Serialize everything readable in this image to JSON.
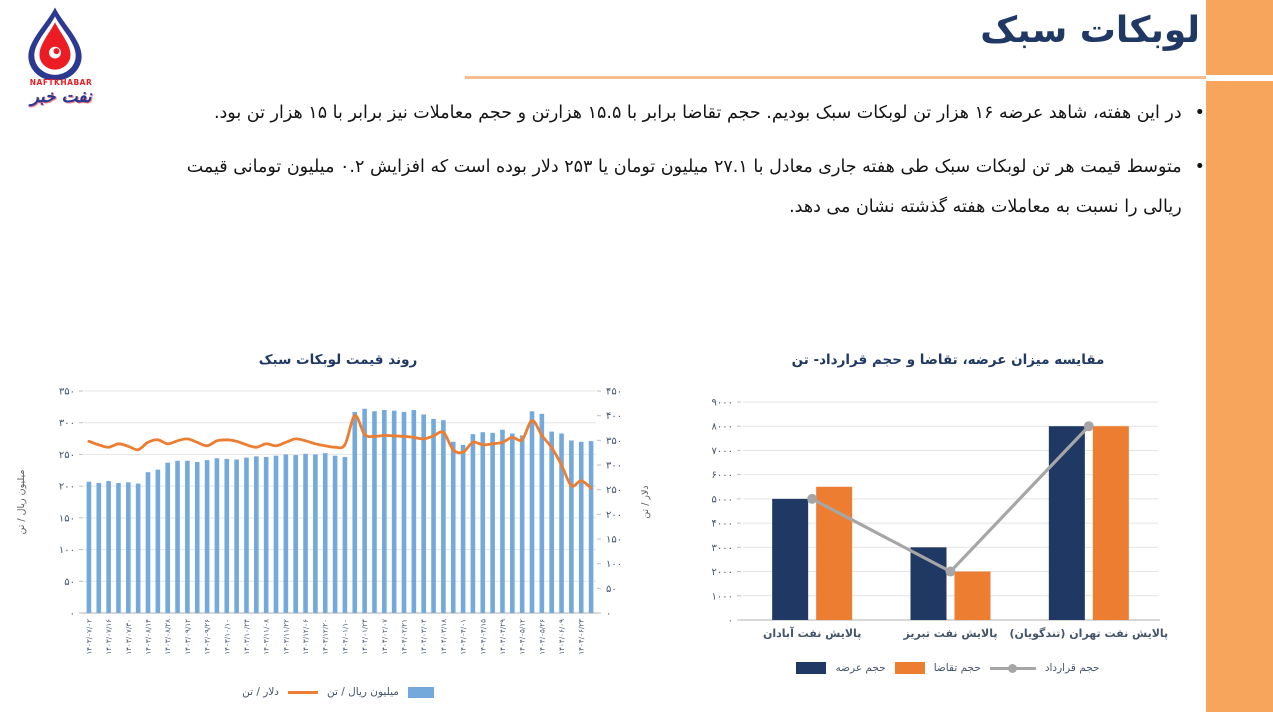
{
  "page": {
    "title": "لوبکات سبک"
  },
  "logo": {
    "name_en": "NAFTKHABAR",
    "name_fa": "نفت خبر"
  },
  "bullets": [
    "در این هفته، شاهد عرضه ۱۶ هزار تن لوبکات سبک بودیم. حجم تقاضا برابر با ۱۵.۵ هزارتن و حجم معاملات نیز برابر با ۱۵ هزار تن بود.",
    "متوسط قیمت هر تن لوبکات سبک طی هفته جاری معادل با ۲۷.۱ میلیون تومان یا ۲۵۳ دلار بوده است که افزایش ۰.۲ میلیون تومانی قیمت ریالی را نسبت به معاملات هفته گذشته نشان می دهد."
  ],
  "colors": {
    "navy": "#1F3864",
    "orange": "#ED7D31",
    "bar_blue": "#74A9DB",
    "line_gray": "#A6A6A6",
    "accent_strip": "#F7A45C",
    "underline": "#F7BD8F",
    "axis_text": "#44546A",
    "title_text": "#1F3864",
    "grid": "#E4E4E4",
    "axis_line": "#BFBFBF"
  },
  "chart_data": [
    {
      "type": "bar",
      "subtype": "bar+line-dual-axis",
      "title": "روند قیمت لوبکات سبک",
      "x_tick_labels": [
        "۱۴۰۳/۰۷/۰۲",
        "۱۴۰۳/۰۷/۱۶",
        "۱۴۰۳/۰۷/۳۰",
        "۱۴۰۳/۰۸/۱۴",
        "۱۴۰۳/۰۸/۲۸",
        "۱۴۰۳/۰۹/۱۲",
        "۱۴۰۳/۰۹/۲۶",
        "۱۴۰۳/۱۰/۱۰",
        "۱۴۰۳/۱۰/۲۴",
        "۱۴۰۳/۱۱/۰۸",
        "۱۴۰۳/۱۱/۲۲",
        "۱۴۰۳/۱۲/۰۶",
        "۱۴۰۳/۱۲/۲۰",
        "۱۴۰۴/۰۱/۱۰",
        "۱۴۰۴/۰۱/۲۴",
        "۱۴۰۴/۰۲/۰۷",
        "۱۴۰۴/۰۲/۲۱",
        "۱۴۰۴/۰۳/۰۴",
        "۱۴۰۴/۰۳/۱۸",
        "۱۴۰۴/۰۴/۰۱",
        "۱۴۰۴/۰۴/۱۵",
        "۱۴۰۴/۰۴/۲۹",
        "۱۴۰۴/۰۵/۱۲",
        "۱۴۰۴/۰۵/۲۶",
        "۱۴۰۴/۰۶/۰۹",
        "۱۴۰۴/۰۶/۲۳"
      ],
      "series": [
        {
          "name": "میلیون ریال / تن",
          "type": "bar",
          "axis": "left",
          "values": [
            207,
            205,
            208,
            205,
            206,
            204,
            222,
            226,
            237,
            240,
            240,
            238,
            241,
            244,
            243,
            242,
            245,
            247,
            246,
            248,
            250,
            249,
            251,
            250,
            252,
            248,
            246,
            317,
            322,
            318,
            320,
            319,
            317,
            320,
            313,
            306,
            304,
            270,
            265,
            282,
            285,
            284,
            289,
            283,
            280,
            318,
            314,
            286,
            283,
            272,
            270,
            271
          ]
        },
        {
          "name": "دلار / تن",
          "type": "line",
          "axis": "right",
          "values": [
            348,
            341,
            336,
            343,
            338,
            331,
            346,
            351,
            343,
            349,
            353,
            346,
            339,
            349,
            351,
            348,
            341,
            336,
            343,
            339,
            346,
            353,
            349,
            343,
            339,
            336,
            341,
            400,
            362,
            358,
            360,
            359,
            358,
            356,
            353,
            359,
            366,
            331,
            326,
            346,
            341,
            343,
            346,
            356,
            351,
            390,
            360,
            335,
            300,
            258,
            268,
            253
          ]
        }
      ],
      "left_axis": {
        "label": "میلیون ریال / تن",
        "min": 0,
        "max": 350,
        "step": 50
      },
      "right_axis": {
        "label": "دلار / تن",
        "min": 0,
        "max": 450,
        "step": 50
      },
      "legend_position": "bottom",
      "grid": true
    },
    {
      "type": "bar",
      "subtype": "grouped-bar+line",
      "title": "مقایسه میزان عرضه، تقاضا و حجم قرارداد- تن",
      "categories": [
        "پالایش نفت آبادان",
        "پالایش نفت تبریز",
        "پالایش نفت تهران (تندگویان)"
      ],
      "series": [
        {
          "name": "حجم عرضه",
          "type": "bar",
          "values": [
            5000,
            3000,
            8000
          ]
        },
        {
          "name": "حجم تقاضا",
          "type": "bar",
          "values": [
            5500,
            2000,
            8000
          ]
        },
        {
          "name": "حجم قرارداد",
          "type": "line",
          "values": [
            5000,
            2000,
            8000
          ]
        }
      ],
      "y_axis": {
        "min": 0,
        "max": 9000,
        "step": 1000
      },
      "legend_position": "bottom",
      "grid": true
    }
  ]
}
